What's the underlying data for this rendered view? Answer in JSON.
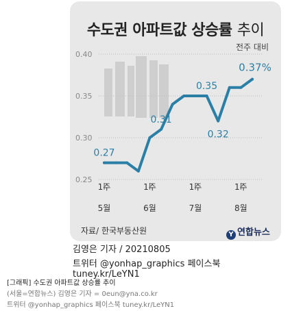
{
  "graphic": {
    "title_main": "수도권 아파트값 상승률 ",
    "title_tail": "추이",
    "subtitle": "전주 대비",
    "source": "자료/ 한국부동산원",
    "logo": "연합뉴스",
    "logo_mark": "Y"
  },
  "credits": {
    "line1": "김영은 기자 / 20210805",
    "line2": "트위터 @yonhap_graphics  페이스북 tuney.kr/LeYN1"
  },
  "caption": {
    "label": "[그래픽] 수도권 아파트값 상승률 추이",
    "byline": "(서울=연합뉴스) 김영은 기자 = 0eun@yna.co.kr",
    "social": "트위터 @yonhap_graphics 페이스북 tuney.kr/LeYN1"
  },
  "colors": {
    "line": "#2a7fa6",
    "grid": "#bdbdbd",
    "card": "#e8e8e8",
    "label": "#2a7fa6"
  },
  "chart_data": {
    "type": "line",
    "title": "수도권 아파트값 상승률 추이",
    "subtitle": "전주 대비",
    "ylim": [
      0.25,
      0.4
    ],
    "yticks": [
      "0.40",
      "0.35",
      "0.30",
      "0.25"
    ],
    "ytick_values": [
      0.4,
      0.35,
      0.3,
      0.25
    ],
    "xtick_labels": [
      {
        "week": "1주",
        "month": "5월",
        "index": 0
      },
      {
        "week": "1주",
        "month": "6월",
        "index": 4
      },
      {
        "week": "1주",
        "month": "7월",
        "index": 8
      },
      {
        "week": "1주",
        "month": "8월",
        "index": 12
      }
    ],
    "series": [
      {
        "values": [
          0.27,
          0.27,
          0.27,
          0.26,
          0.3,
          0.31,
          0.34,
          0.35,
          0.35,
          0.35,
          0.32,
          0.36,
          0.36,
          0.37
        ]
      }
    ],
    "data_labels": [
      {
        "index": 0,
        "text": "0.27"
      },
      {
        "index": 5,
        "text": "0.31"
      },
      {
        "index": 9,
        "text": "0.35"
      },
      {
        "index": 10,
        "text": "0.32"
      },
      {
        "index": 13,
        "text": "0.37%"
      }
    ],
    "grid": true
  }
}
